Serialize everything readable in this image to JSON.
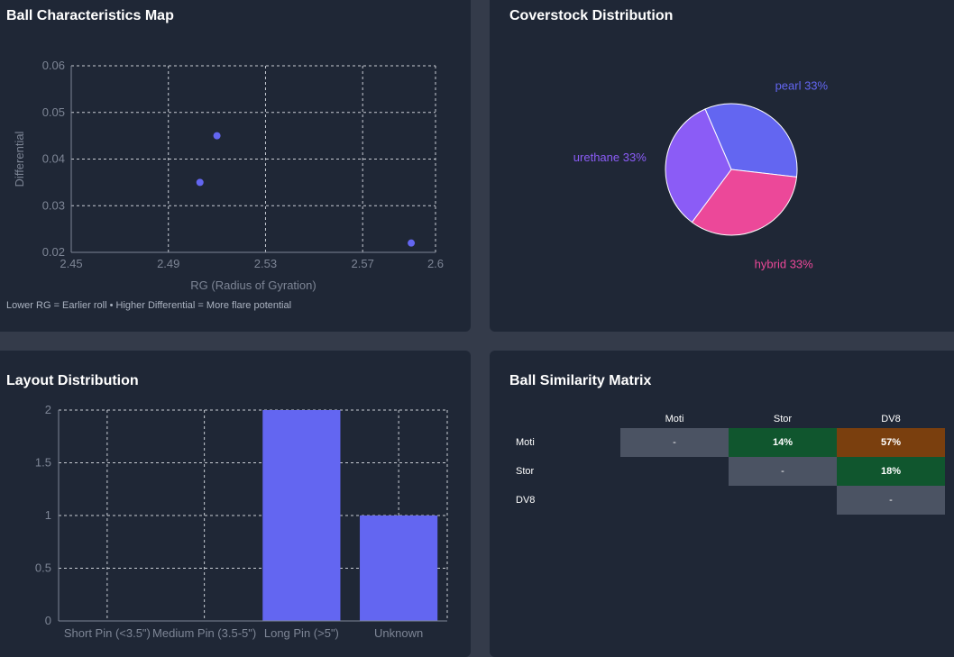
{
  "colors": {
    "accent": "#6366f1",
    "urethane": "#8b5cf6",
    "hybrid": "#ec4899",
    "card_bg": "#1f2736",
    "page_bg": "#343b4a"
  },
  "scatter_card": {
    "title": "Ball Characteristics Map",
    "note": "Lower RG = Earlier roll • Higher Differential = More flare potential"
  },
  "pie_card": {
    "title": "Coverstock Distribution"
  },
  "bar_card": {
    "title": "Layout Distribution"
  },
  "matrix_card": {
    "title": "Ball Similarity Matrix",
    "columns": [
      "Moti",
      "Stor",
      "DV8"
    ],
    "rows": [
      {
        "label": "Moti",
        "cells": [
          "-",
          "14%",
          "57%"
        ]
      },
      {
        "label": "Stor",
        "cells": [
          "",
          "-",
          "18%"
        ]
      },
      {
        "label": "DV8",
        "cells": [
          "",
          "",
          "-"
        ]
      }
    ]
  },
  "chart_data": [
    {
      "type": "scatter",
      "xlabel": "RG (Radius of Gyration)",
      "ylabel": "Differential",
      "xlim": [
        2.45,
        2.6
      ],
      "ylim": [
        0.02,
        0.06
      ],
      "xticks": [
        2.45,
        2.49,
        2.53,
        2.57,
        2.6
      ],
      "xtick_labels": [
        "2.45",
        "2.49",
        "2.53",
        "2.57",
        "2.6"
      ],
      "yticks": [
        0.02,
        0.03,
        0.04,
        0.05,
        0.06
      ],
      "ytick_labels": [
        "0.02",
        "0.03",
        "0.04",
        "0.05",
        "0.06"
      ],
      "grid": true,
      "points": [
        {
          "x": 2.503,
          "y": 0.035
        },
        {
          "x": 2.51,
          "y": 0.045
        },
        {
          "x": 2.59,
          "y": 0.022
        }
      ]
    },
    {
      "type": "pie",
      "slices": [
        {
          "label": "pearl",
          "value": 33,
          "text": "pearl 33%",
          "color": "#6366f1"
        },
        {
          "label": "hybrid",
          "value": 33,
          "text": "hybrid 33%",
          "color": "#ec4899"
        },
        {
          "label": "urethane",
          "value": 33,
          "text": "urethane 33%",
          "color": "#8b5cf6"
        }
      ]
    },
    {
      "type": "bar",
      "categories": [
        "Short Pin (<3.5\")",
        "Medium Pin (3.5-5\")",
        "Long Pin (>5\")",
        "Unknown"
      ],
      "values": [
        0,
        0,
        2,
        1
      ],
      "ylim": [
        0,
        2
      ],
      "yticks": [
        0,
        0.5,
        1,
        1.5,
        2
      ],
      "ytick_labels": [
        "0",
        "0.5",
        "1",
        "1.5",
        "2"
      ],
      "grid": true,
      "color": "#6366f1"
    }
  ]
}
